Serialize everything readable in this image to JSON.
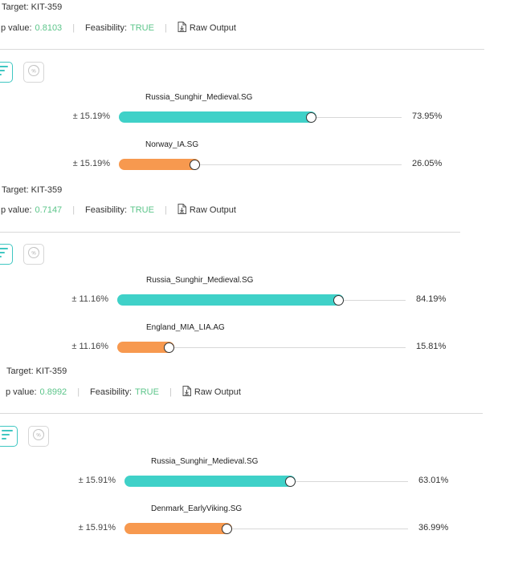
{
  "cards": [
    {
      "target_label": "Target: KIT-359",
      "p_label": "p value:",
      "p_value": "0.8103",
      "feas_label": "Feasibility:",
      "feas_value": "TRUE",
      "raw_label": "Raw Output",
      "rows": [
        {
          "name": "Russia_Sunghir_Medieval.SG",
          "err": "± 15.19%",
          "pct": "73.95%",
          "value": 0.7395,
          "color": "teal"
        },
        {
          "name": "Norway_IA.SG",
          "err": "± 15.19%",
          "pct": "26.05%",
          "value": 0.2605,
          "color": "orange"
        }
      ]
    },
    {
      "target_label": "Target: KIT-359",
      "p_label": "p value:",
      "p_value": "0.7147",
      "feas_label": "Feasibility:",
      "feas_value": "TRUE",
      "raw_label": "Raw Output",
      "rows": [
        {
          "name": "Russia_Sunghir_Medieval.SG",
          "err": "± 11.16%",
          "pct": "84.19%",
          "value": 0.8419,
          "color": "teal"
        },
        {
          "name": "England_MIA_LIA.AG",
          "err": "± 11.16%",
          "pct": "15.81%",
          "value": 0.1581,
          "color": "orange"
        }
      ]
    },
    {
      "target_label": "Target: KIT-359",
      "p_label": "p value:",
      "p_value": "0.8992",
      "feas_label": "Feasibility:",
      "feas_value": "TRUE",
      "raw_label": "Raw Output",
      "rows": [
        {
          "name": "Russia_Sunghir_Medieval.SG",
          "err": "± 15.91%",
          "pct": "63.01%",
          "value": 0.6301,
          "color": "teal"
        },
        {
          "name": "Denmark_EarlyViking.SG",
          "err": "± 15.91%",
          "pct": "36.99%",
          "value": 0.3699,
          "color": "orange"
        }
      ]
    }
  ],
  "colors": {
    "teal": "#3fd1c8",
    "orange": "#f7994f",
    "pvalue": "#5cc58a",
    "accent_border": "#3fc7c2"
  },
  "icons": {
    "bar_toggle": "bar-list-icon",
    "percent_toggle": "percent-circle-icon",
    "raw_output": "download-doc-icon"
  }
}
